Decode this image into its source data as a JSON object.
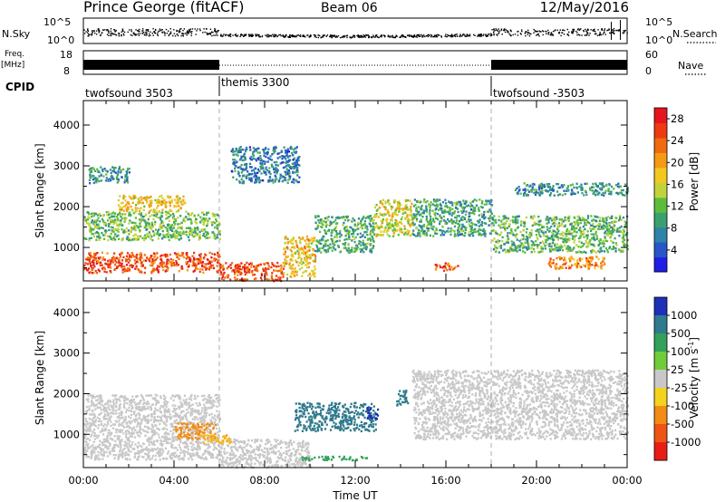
{
  "header": {
    "title": "Prince George (fitACF)",
    "beam": "Beam 06",
    "date": "12/May/2016"
  },
  "top_panels": {
    "nsky_label": "N.Sky",
    "nsearch_label": "N.Search",
    "freq_label": "Freq.",
    "freq_unit": "[MHz]",
    "nave_label": "Nave",
    "cpid_label": "CPID",
    "nsky_ticks": [
      "10^5",
      "10^0"
    ],
    "nsearch_ticks": [
      "10^5",
      "10^0"
    ],
    "freq_ticks": [
      "18",
      "8"
    ],
    "nave_ticks": [
      "60",
      "0"
    ]
  },
  "cpid_segments": [
    {
      "label": "twofsound 3503",
      "start_hour": 0
    },
    {
      "label": "themis 3300",
      "start_hour": 6
    },
    {
      "label": "twofsound -3503",
      "start_hour": 18
    }
  ],
  "chart_data": [
    {
      "type": "heatmap",
      "quantity": "Power",
      "ylabel": "Slant Range [km]",
      "xlabel": "Time UT",
      "colorbar_label": "Power [dB]",
      "colorbar_ticks": [
        "4",
        "8",
        "12",
        "16",
        "20",
        "24",
        "28"
      ],
      "colorbar_range": [
        0,
        30
      ],
      "x_ticks": [
        "00:00",
        "04:00",
        "08:00",
        "12:00",
        "16:00",
        "20:00",
        "00:00"
      ],
      "y_ticks": [
        "1000",
        "2000",
        "3000",
        "4000"
      ],
      "xlim_hours": [
        0,
        24
      ],
      "ylim_km": [
        180,
        4600
      ],
      "regions": [
        {
          "t": [
            0.0,
            6.0
          ],
          "r": [
            400,
            900
          ],
          "v": 26
        },
        {
          "t": [
            6.0,
            8.8
          ],
          "r": [
            200,
            650
          ],
          "v": 26
        },
        {
          "t": [
            8.8,
            10.2
          ],
          "r": [
            300,
            1300
          ],
          "v": 18
        },
        {
          "t": [
            10.2,
            12.8
          ],
          "r": [
            900,
            1800
          ],
          "v": 10
        },
        {
          "t": [
            12.8,
            14.5
          ],
          "r": [
            1300,
            2200
          ],
          "v": 16
        },
        {
          "t": [
            0.0,
            6.0
          ],
          "r": [
            1200,
            1900
          ],
          "v": 12
        },
        {
          "t": [
            1.5,
            4.5
          ],
          "r": [
            1900,
            2300
          ],
          "v": 18
        },
        {
          "t": [
            0.2,
            2.0
          ],
          "r": [
            2600,
            3000
          ],
          "v": 8
        },
        {
          "t": [
            6.5,
            9.5
          ],
          "r": [
            2600,
            3500
          ],
          "v": 6
        },
        {
          "t": [
            14.5,
            18.0
          ],
          "r": [
            1300,
            2200
          ],
          "v": 9
        },
        {
          "t": [
            18.0,
            24.0
          ],
          "r": [
            900,
            1800
          ],
          "v": 11
        },
        {
          "t": [
            19.0,
            24.0
          ],
          "r": [
            2300,
            2600
          ],
          "v": 7
        },
        {
          "t": [
            15.5,
            16.5
          ],
          "r": [
            450,
            650
          ],
          "v": 26
        },
        {
          "t": [
            20.5,
            23.0
          ],
          "r": [
            500,
            800
          ],
          "v": 22
        }
      ]
    },
    {
      "type": "heatmap",
      "quantity": "Velocity",
      "ylabel": "Slant Range [km]",
      "xlabel": "Time UT",
      "colorbar_label": "Velocity [m s^-1]",
      "colorbar_ticks": [
        "1000",
        "500",
        "100",
        "25",
        "-25",
        "-100",
        "-500",
        "-1000"
      ],
      "x_ticks": [
        "00:00",
        "04:00",
        "08:00",
        "12:00",
        "16:00",
        "20:00",
        "00:00"
      ],
      "y_ticks": [
        "1000",
        "2000",
        "3000",
        "4000"
      ],
      "xlim_hours": [
        0,
        24
      ],
      "ylim_km": [
        180,
        4600
      ],
      "regions": [
        {
          "t": [
            0.0,
            6.0
          ],
          "r": [
            400,
            2000
          ],
          "v": 0
        },
        {
          "t": [
            6.0,
            10.0
          ],
          "r": [
            200,
            900
          ],
          "v": 0
        },
        {
          "t": [
            14.5,
            24.0
          ],
          "r": [
            900,
            2600
          ],
          "v": 0
        },
        {
          "t": [
            4.0,
            5.8
          ],
          "r": [
            900,
            1300
          ],
          "v": -300
        },
        {
          "t": [
            5.0,
            6.5
          ],
          "r": [
            800,
            1000
          ],
          "v": -80
        },
        {
          "t": [
            9.3,
            12.9
          ],
          "r": [
            1100,
            1800
          ],
          "v": 200
        },
        {
          "t": [
            12.5,
            13.0
          ],
          "r": [
            1400,
            1700
          ],
          "v": 800
        },
        {
          "t": [
            9.5,
            12.5
          ],
          "r": [
            380,
            480
          ],
          "v": 60
        },
        {
          "t": [
            13.8,
            14.3
          ],
          "r": [
            1700,
            2100
          ],
          "v": 150
        }
      ]
    }
  ]
}
